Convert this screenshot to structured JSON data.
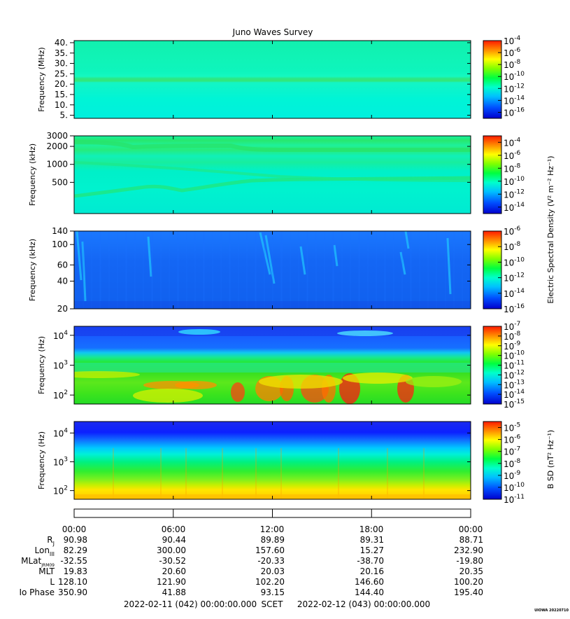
{
  "title": "Juno Waves Survey",
  "corner_label": "UIOWA 20220710",
  "cbar_label_electric": "Electric Spectral Density (V² m⁻² Hz⁻¹)",
  "cbar_label_magnetic": "B SD (nT² Hz⁻¹)",
  "chart_data": [
    {
      "type": "heatmap",
      "ylabel": "Frequency (MHz)",
      "yticks": [
        "5.",
        "10.",
        "15.",
        "20.",
        "25.",
        "30.",
        "35.",
        "40."
      ],
      "ylim": [
        3.5,
        41
      ],
      "colorbar_exponents": [
        "-4",
        "-6",
        "-8",
        "-10",
        "-12",
        "-14",
        "-16"
      ],
      "colorbar_range": [
        -17,
        -4
      ]
    },
    {
      "type": "heatmap",
      "ylabel": "Frequency (kHz)",
      "yticks": [
        "500",
        "1000",
        "2000",
        "3000"
      ],
      "ylim": [
        150,
        3000
      ],
      "yscale": "log",
      "colorbar_exponents": [
        "-4",
        "-6",
        "-8",
        "-10",
        "-12",
        "-14"
      ],
      "colorbar_range": [
        -15,
        -3
      ]
    },
    {
      "type": "heatmap",
      "ylabel": "Frequency (kHz)",
      "yticks": [
        "20",
        "40",
        "60",
        "100",
        "140"
      ],
      "ylim": [
        20,
        140
      ],
      "yscale": "log",
      "colorbar_exponents": [
        "-6",
        "-8",
        "-10",
        "-12",
        "-14",
        "-16"
      ],
      "colorbar_range": [
        -16,
        -6
      ]
    },
    {
      "type": "heatmap",
      "ylabel": "Frequency (Hz)",
      "yticks": [
        "10²",
        "10³",
        "10⁴"
      ],
      "ylim": [
        50,
        20000
      ],
      "yscale": "log",
      "colorbar_exponents": [
        "-7",
        "-8",
        "-9",
        "-10",
        "-11",
        "-12",
        "-13",
        "-14",
        "-15"
      ],
      "colorbar_range": [
        -15,
        -7
      ]
    },
    {
      "type": "heatmap",
      "ylabel": "Frequency (Hz)",
      "yticks": [
        "10²",
        "10³",
        "10⁴"
      ],
      "ylim": [
        50,
        25000
      ],
      "yscale": "log",
      "colorbar_exponents": [
        "-5",
        "-6",
        "-7",
        "-8",
        "-9",
        "-10",
        "-11"
      ],
      "colorbar_range": [
        -11,
        -4.5
      ]
    }
  ],
  "time_axis": {
    "ticks": [
      "00:00",
      "06:00",
      "12:00",
      "18:00",
      "00:00"
    ],
    "rows": [
      {
        "label": "R",
        "sub": "J",
        "values": [
          "90.98",
          "90.44",
          "89.89",
          "89.31",
          "88.71"
        ]
      },
      {
        "label": "Lon",
        "sub": "III",
        "values": [
          "82.29",
          "300.00",
          "157.60",
          "15.27",
          "232.90"
        ]
      },
      {
        "label": "MLat",
        "sub": "JRM09",
        "values": [
          "-32.55",
          "-30.52",
          "-20.33",
          "-38.70",
          "-19.80"
        ]
      },
      {
        "label": "MLT",
        "sub": "",
        "values": [
          "19.83",
          "20.60",
          "20.03",
          "20.16",
          "20.35"
        ]
      },
      {
        "label": "L",
        "sub": "",
        "values": [
          "128.10",
          "121.90",
          "102.20",
          "146.60",
          "100.20"
        ]
      },
      {
        "label": "Io Phase",
        "sub": "",
        "values": [
          "350.90",
          "41.88",
          "93.15",
          "144.40",
          "195.40"
        ]
      }
    ],
    "start": "2022-02-11 (042) 00:00:00.000",
    "scet": "SCET",
    "end": "2022-02-12 (043) 00:00:00.000"
  }
}
